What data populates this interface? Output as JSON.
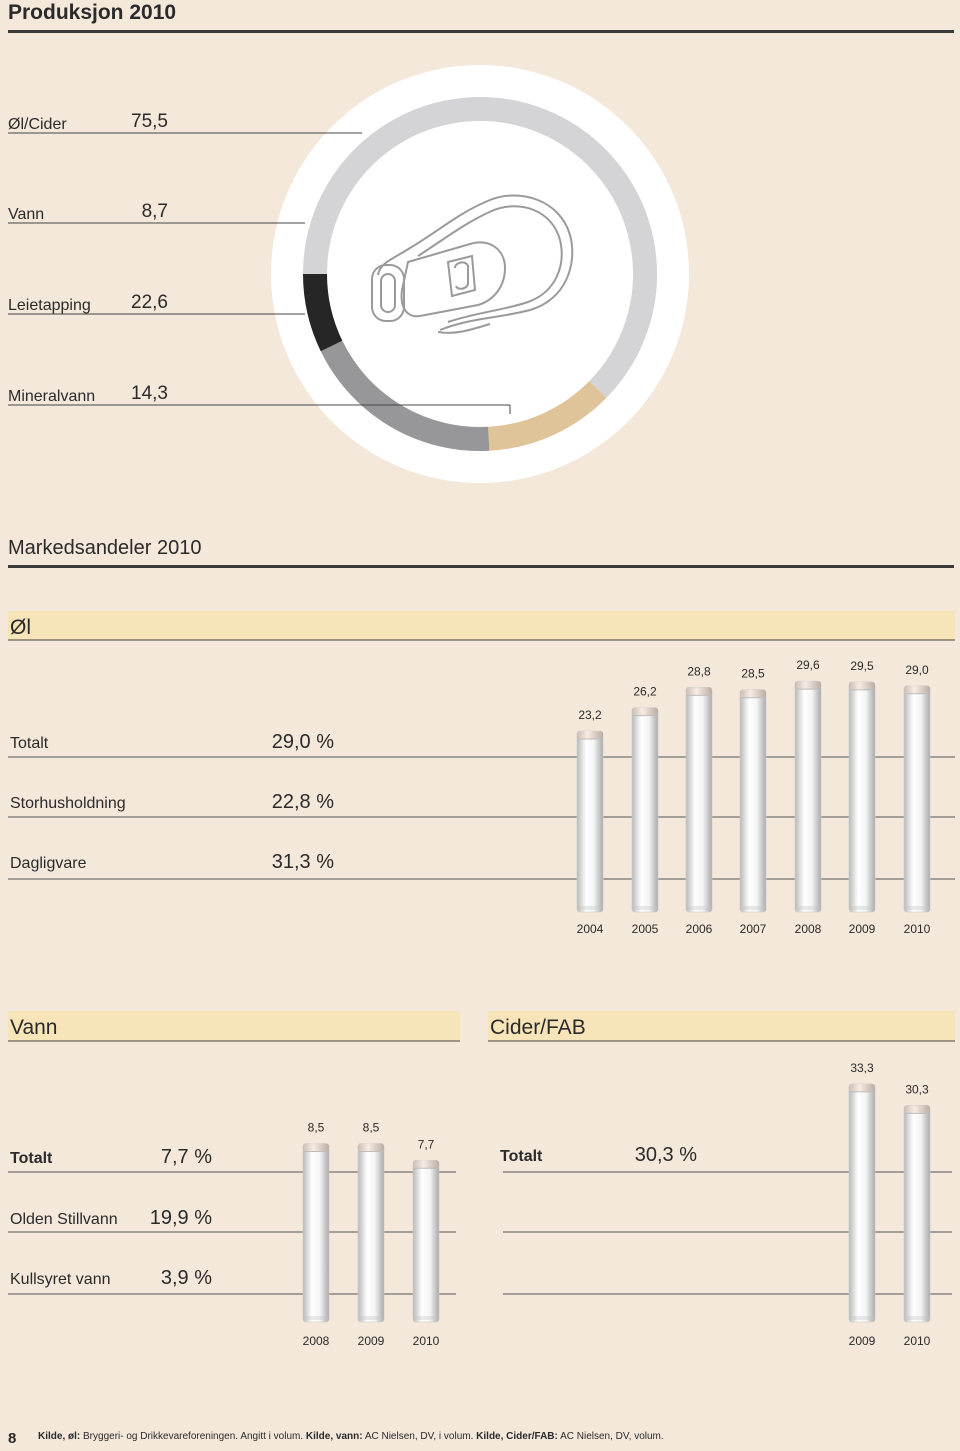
{
  "header": {
    "title": "Produksjon 2010"
  },
  "production": {
    "items": [
      {
        "label": "Øl/Cider",
        "value": 75.5,
        "value_label": "75,5",
        "color": "#d4d4d6"
      },
      {
        "label": "Vann",
        "value": 8.7,
        "value_label": "8,7",
        "color": "#262626"
      },
      {
        "label": "Leietapping",
        "value": 22.6,
        "value_label": "22,6",
        "color": "#97979a"
      },
      {
        "label": "Mineralvann",
        "value": 14.3,
        "value_label": "14,3",
        "color": "#dfc49a"
      }
    ]
  },
  "market": {
    "title": "Markedsandeler 2010",
    "sections": [
      {
        "title": "Øl",
        "rows": [
          {
            "label": "Totalt",
            "share": "29,0 %"
          },
          {
            "label": "Storhusholdning",
            "share": "22,8 %"
          },
          {
            "label": "Dagligvare",
            "share": "31,3 %"
          }
        ],
        "chart": {
          "type": "bar",
          "categories": [
            "2004",
            "2005",
            "2006",
            "2007",
            "2008",
            "2009",
            "2010"
          ],
          "values": [
            23.2,
            26.2,
            28.8,
            28.5,
            29.6,
            29.5,
            29.0
          ],
          "value_labels": [
            "23,2",
            "26,2",
            "28,8",
            "28,5",
            "29,6",
            "29,5",
            "29,0"
          ]
        }
      },
      {
        "title": "Vann",
        "rows": [
          {
            "label": "Totalt",
            "share": "7,7 %"
          },
          {
            "label": "Olden Stillvann",
            "share": "19,9 %"
          },
          {
            "label": "Kullsyret vann",
            "share": "3,9 %"
          }
        ],
        "chart": {
          "type": "bar",
          "categories": [
            "2008",
            "2009",
            "2010"
          ],
          "values": [
            8.5,
            8.5,
            7.7
          ],
          "value_labels": [
            "8,5",
            "8,5",
            "7,7"
          ]
        }
      },
      {
        "title": "Cider/FAB",
        "rows": [
          {
            "label": "Totalt",
            "share": "30,3 %"
          }
        ],
        "chart": {
          "type": "bar",
          "categories": [
            "2009",
            "2010"
          ],
          "values": [
            33.3,
            30.3
          ],
          "value_labels": [
            "33,3",
            "30,3"
          ]
        }
      }
    ]
  },
  "footer": {
    "page": "8",
    "source": [
      {
        "text": "Kilde, øl:",
        "bold": true
      },
      {
        "text": " Bryggeri- og Drikkevareforeningen. Angitt i volum. ",
        "bold": false
      },
      {
        "text": "Kilde, vann:",
        "bold": true
      },
      {
        "text": " AC Nielsen, DV, i volum. ",
        "bold": false
      },
      {
        "text": "Kilde, Cider/FAB:",
        "bold": true
      },
      {
        "text": " AC Nielsen, DV, volum.",
        "bold": false
      }
    ]
  }
}
